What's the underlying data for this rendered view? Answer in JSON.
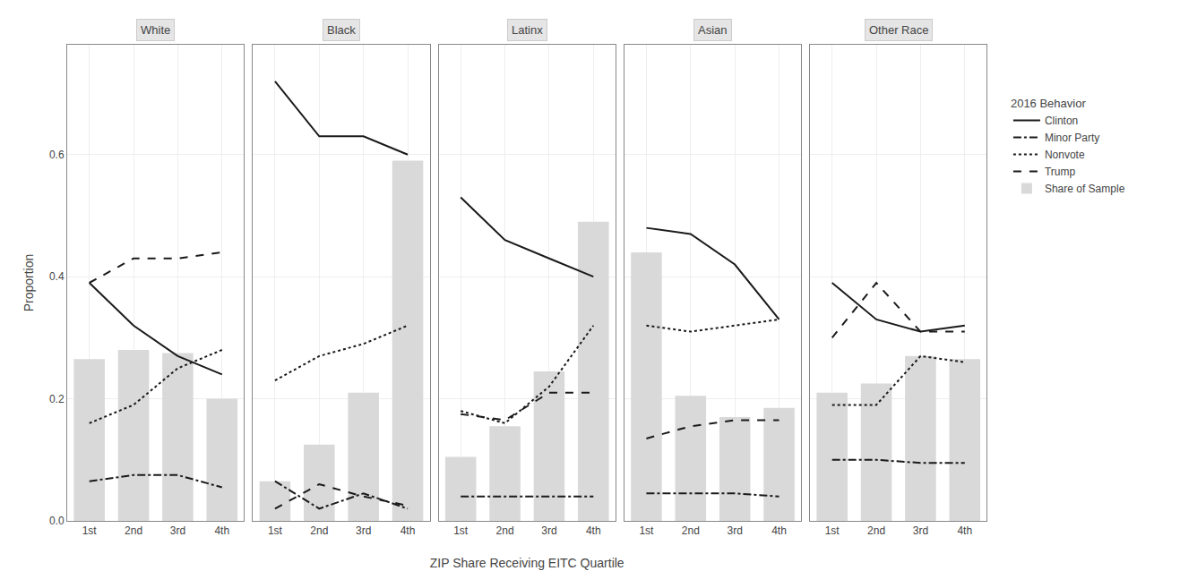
{
  "chart_data": [
    {
      "type": "line",
      "title": "White",
      "ylabel": "Proportion",
      "legend_title": "2016 Behavior",
      "legend": "right",
      "categories": [
        "1st",
        "2nd",
        "3rd",
        "4th"
      ],
      "series": [
        {
          "name": "Clinton",
          "color": "#1a1a1a",
          "line_style": "solid",
          "values": [
            0.39,
            0.32,
            0.27,
            0.24
          ]
        },
        {
          "name": "Minor Party",
          "color": "#1a1a1a",
          "line_style": "dashdot",
          "values": [
            0.065,
            0.075,
            0.075,
            0.055
          ]
        },
        {
          "name": "Nonvote",
          "color": "#1a1a1a",
          "line_style": "dot",
          "values": [
            0.16,
            0.19,
            0.25,
            0.28
          ]
        },
        {
          "name": "Trump",
          "color": "#1a1a1a",
          "line_style": "dash",
          "values": [
            0.39,
            0.43,
            0.43,
            0.44
          ]
        },
        {
          "name": "Share of Sample",
          "type": "bar",
          "color": "#d9d9d9",
          "values": [
            0.265,
            0.28,
            0.275,
            0.2
          ]
        }
      ],
      "ylim": [
        0.0,
        0.78
      ],
      "yticks": [
        {
          "value": 0.0,
          "label": "0.0"
        },
        0.2,
        0.4,
        0.6
      ],
      "grid": true
    },
    {
      "type": "line",
      "title": "Black",
      "tick_labels": "x",
      "categories": [
        "1st",
        "2nd",
        "3rd",
        "4th"
      ],
      "series": [
        {
          "name": "Clinton",
          "color": "#1a1a1a",
          "line_style": "solid",
          "values": [
            0.72,
            0.63,
            0.63,
            0.6
          ]
        },
        {
          "name": "Minor Party",
          "color": "#1a1a1a",
          "line_style": "dashdot",
          "values": [
            0.065,
            0.02,
            0.045,
            0.02
          ]
        },
        {
          "name": "Nonvote",
          "color": "#1a1a1a",
          "line_style": "dot",
          "values": [
            0.23,
            0.27,
            0.29,
            0.32
          ]
        },
        {
          "name": "Trump",
          "color": "#1a1a1a",
          "line_style": "dash",
          "values": [
            0.02,
            0.06,
            0.04,
            0.025
          ]
        },
        {
          "name": "Share of Sample",
          "type": "bar",
          "color": "#d9d9d9",
          "values": [
            0.065,
            0.125,
            0.21,
            0.59
          ]
        }
      ],
      "ylim": [
        0.0,
        0.78
      ],
      "yticks": [
        {
          "value": 0.0,
          "label": "0.0"
        },
        0.2,
        0.4,
        0.6
      ],
      "grid": true
    },
    {
      "type": "line",
      "title": "Latinx",
      "xlabel": "ZIP Share Receiving EITC Quartile",
      "tick_labels": "x",
      "categories": [
        "1st",
        "2nd",
        "3rd",
        "4th"
      ],
      "series": [
        {
          "name": "Clinton",
          "color": "#1a1a1a",
          "line_style": "solid",
          "values": [
            0.53,
            0.46,
            0.43,
            0.4
          ]
        },
        {
          "name": "Minor Party",
          "color": "#1a1a1a",
          "line_style": "dashdot",
          "values": [
            0.04,
            0.04,
            0.04,
            0.04
          ]
        },
        {
          "name": "Nonvote",
          "color": "#1a1a1a",
          "line_style": "dot",
          "values": [
            0.18,
            0.16,
            0.22,
            0.32
          ]
        },
        {
          "name": "Trump",
          "color": "#1a1a1a",
          "line_style": "dash",
          "values": [
            0.175,
            0.165,
            0.21,
            0.21
          ]
        },
        {
          "name": "Share of Sample",
          "type": "bar",
          "color": "#d9d9d9",
          "values": [
            0.105,
            0.155,
            0.245,
            0.49
          ]
        }
      ],
      "ylim": [
        0.0,
        0.78
      ],
      "yticks": [
        {
          "value": 0.0,
          "label": "0.0"
        },
        0.2,
        0.4,
        0.6
      ],
      "grid": true
    },
    {
      "type": "line",
      "title": "Asian",
      "tick_labels": "x",
      "categories": [
        "1st",
        "2nd",
        "3rd",
        "4th"
      ],
      "series": [
        {
          "name": "Clinton",
          "color": "#1a1a1a",
          "line_style": "solid",
          "values": [
            0.48,
            0.47,
            0.42,
            0.33
          ]
        },
        {
          "name": "Minor Party",
          "color": "#1a1a1a",
          "line_style": "dashdot",
          "values": [
            0.045,
            0.045,
            0.045,
            0.04
          ]
        },
        {
          "name": "Nonvote",
          "color": "#1a1a1a",
          "line_style": "dot",
          "values": [
            0.32,
            0.31,
            0.32,
            0.33
          ]
        },
        {
          "name": "Trump",
          "color": "#1a1a1a",
          "line_style": "dash",
          "values": [
            0.135,
            0.155,
            0.165,
            0.165
          ]
        },
        {
          "name": "Share of Sample",
          "type": "bar",
          "color": "#d9d9d9",
          "values": [
            0.44,
            0.205,
            0.17,
            0.185
          ]
        }
      ],
      "ylim": [
        0.0,
        0.78
      ],
      "yticks": [
        {
          "value": 0.0,
          "label": "0.0"
        },
        0.2,
        0.4,
        0.6
      ],
      "grid": true
    },
    {
      "type": "line",
      "title": "Other Race",
      "tick_labels": "x",
      "categories": [
        "1st",
        "2nd",
        "3rd",
        "4th"
      ],
      "series": [
        {
          "name": "Clinton",
          "color": "#1a1a1a",
          "line_style": "solid",
          "values": [
            0.39,
            0.33,
            0.31,
            0.32
          ]
        },
        {
          "name": "Minor Party",
          "color": "#1a1a1a",
          "line_style": "dashdot",
          "values": [
            0.1,
            0.1,
            0.095,
            0.095
          ]
        },
        {
          "name": "Nonvote",
          "color": "#1a1a1a",
          "line_style": "dot",
          "values": [
            0.19,
            0.19,
            0.27,
            0.26
          ]
        },
        {
          "name": "Trump",
          "color": "#1a1a1a",
          "line_style": "dash",
          "values": [
            0.3,
            0.39,
            0.31,
            0.31
          ]
        },
        {
          "name": "Share of Sample",
          "type": "bar",
          "color": "#d9d9d9",
          "values": [
            0.21,
            0.225,
            0.27,
            0.265
          ]
        }
      ],
      "ylim": [
        0.0,
        0.78
      ],
      "yticks": [
        {
          "value": 0.0,
          "label": "0.0"
        },
        0.2,
        0.4,
        0.6
      ],
      "grid": true
    }
  ]
}
